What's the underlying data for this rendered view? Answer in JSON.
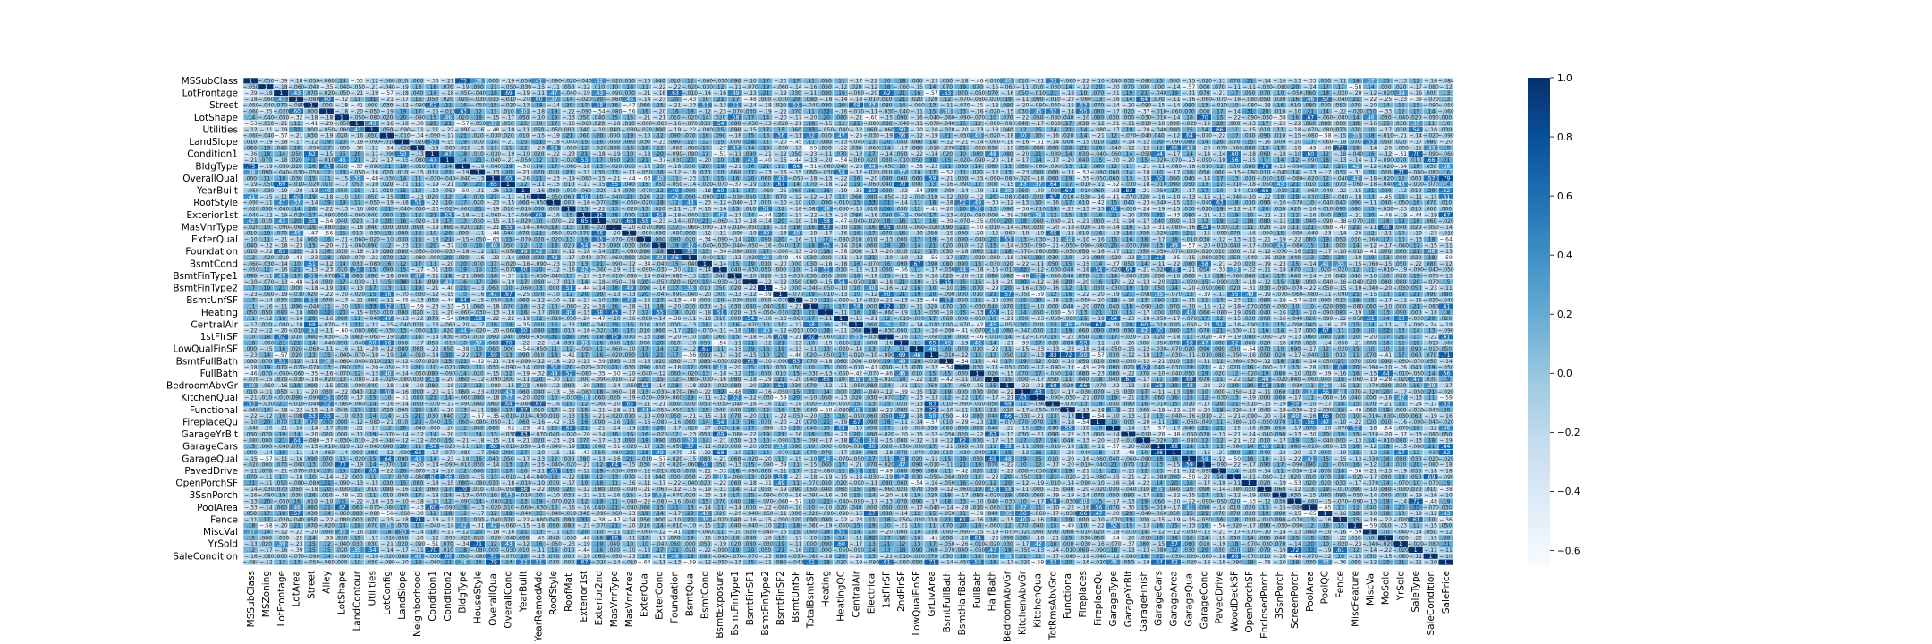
{
  "chart_data": {
    "type": "heatmap",
    "title": "",
    "xlabel": "",
    "ylabel": "",
    "variables": [
      "MSSubClass",
      "MSZoning",
      "LotFrontage",
      "LotArea",
      "Street",
      "Alley",
      "LotShape",
      "LandContour",
      "Utilities",
      "LotConfig",
      "LandSlope",
      "Neighborhood",
      "Condition1",
      "Condition2",
      "BldgType",
      "HouseStyle",
      "OverallQual",
      "OverallCond",
      "YearBuilt",
      "YearRemodAdd",
      "RoofStyle",
      "RoofMatl",
      "Exterior1st",
      "Exterior2nd",
      "MasVnrType",
      "MasVnrArea",
      "ExterQual",
      "ExterCond",
      "Foundation",
      "BsmtQual",
      "BsmtCond",
      "BsmtExposure",
      "BsmtFinType1",
      "BsmtFinSF1",
      "BsmtFinType2",
      "BsmtFinSF2",
      "BsmtUnfSF",
      "TotalBsmtSF",
      "Heating",
      "HeatingQC",
      "CentralAir",
      "Electrical",
      "1stFlrSF",
      "2ndFlrSF",
      "LowQualFinSF",
      "GrLivArea",
      "BsmtFullBath",
      "BsmtHalfBath",
      "FullBath",
      "HalfBath",
      "BedroomAbvGr",
      "KitchenAbvGr",
      "KitchenQual",
      "TotRmsAbvGrd",
      "Functional",
      "Fireplaces",
      "FireplaceQu",
      "GarageType",
      "GarageYrBlt",
      "GarageFinish",
      "GarageCars",
      "GarageArea",
      "GarageQual",
      "GarageCond",
      "PavedDrive",
      "WoodDeckSF",
      "OpenPorchSF",
      "EnclosedPorch",
      "3SsnPorch",
      "ScreenPorch",
      "PoolArea",
      "PoolQC",
      "Fence",
      "MiscFeature",
      "MiscVal",
      "MoSold",
      "YrSold",
      "SaleType",
      "SaleCondition",
      "SalePrice"
    ],
    "y_tick_labels": [
      "MSSubClass",
      "LotFrontage",
      "Street",
      "LotShape",
      "Utilities",
      "LandSlope",
      "Condition1",
      "BldgType",
      "OverallQual",
      "YearBuilt",
      "RoofStyle",
      "Exterior1st",
      "MasVnrType",
      "ExterQual",
      "Foundation",
      "BsmtCond",
      "BsmtFinType1",
      "BsmtFinType2",
      "BsmtUnfSF",
      "Heating",
      "CentralAir",
      "1stFlrSF",
      "LowQualFinSF",
      "BsmtFullBath",
      "FullBath",
      "BedroomAbvGr",
      "KitchenQual",
      "Functional",
      "FireplaceQu",
      "GarageYrBlt",
      "GarageCars",
      "GarageQual",
      "PavedDrive",
      "OpenPorchSF",
      "3SsnPorch",
      "PoolArea",
      "Fence",
      "MiscVal",
      "YrSold",
      "SaleCondition"
    ],
    "x_tick_labels": [
      "MSSubClass",
      "MSZoning",
      "LotFrontage",
      "LotArea",
      "Street",
      "Alley",
      "LotShape",
      "LandContour",
      "Utilities",
      "LotConfig",
      "LandSlope",
      "Neighborhood",
      "Condition1",
      "Condition2",
      "BldgType",
      "HouseStyle",
      "OverallQual",
      "OverallCond",
      "YearBuilt",
      "YearRemodAdd",
      "RoofStyle",
      "RoofMatl",
      "Exterior1st",
      "Exterior2nd",
      "MasVnrType",
      "MasVnrArea",
      "ExterQual",
      "ExterCond",
      "Foundation",
      "BsmtQual",
      "BsmtCond",
      "BsmtExposure",
      "BsmtFinType1",
      "BsmtFinSF1",
      "BsmtFinType2",
      "BsmtFinSF2",
      "BsmtUnfSF",
      "TotalBsmtSF",
      "Heating",
      "HeatingQC",
      "CentralAir",
      "Electrical",
      "1stFlrSF",
      "2ndFlrSF",
      "LowQualFinSF",
      "GrLivArea",
      "BsmtFullBath",
      "BsmtHalfBath",
      "FullBath",
      "HalfBath",
      "BedroomAbvGr",
      "KitchenAbvGr",
      "KitchenQual",
      "TotRmsAbvGrd",
      "Functional",
      "Fireplaces",
      "FireplaceQu",
      "GarageType",
      "GarageYrBlt",
      "GarageFinish",
      "GarageCars",
      "GarageArea",
      "GarageQual",
      "GarageCond",
      "PavedDrive",
      "WoodDeckSF",
      "OpenPorchSF",
      "EnclosedPorch",
      "3SsnPorch",
      "ScreenPorch",
      "PoolArea",
      "PoolQC",
      "Fence",
      "MiscFeature",
      "MiscVal",
      "MoSold",
      "YrSold",
      "SaleType",
      "SaleCondition",
      "SalePrice"
    ],
    "vmin": -0.65,
    "vmax": 1.0,
    "colorbar_ticks": [
      1.0,
      0.8,
      0.6,
      0.4,
      0.2,
      0.0,
      -0.2,
      -0.4,
      -0.6
    ],
    "colorbar_tick_labels": [
      "1.0",
      "0.8",
      "0.6",
      "0.4",
      "0.2",
      "0.0",
      "−0.2",
      "−0.4",
      "−0.6"
    ],
    "annotated": true,
    "colormap": "Blues",
    "cell_border_color": "#ffffff",
    "known_cells": [
      {
        "row": "MSSubClass",
        "col": "MSSubClass",
        "value": 1.0
      },
      {
        "row": "MSSubClass",
        "col": "SalePrice",
        "value": -0.084
      },
      {
        "row": "MSSubClass",
        "col": "LotFrontage",
        "value": -0.39
      },
      {
        "row": "MSSubClass",
        "col": "BldgType",
        "value": 0.75
      },
      {
        "row": "OverallQual",
        "col": "SalePrice",
        "value": 0.79
      },
      {
        "row": "GrLivArea",
        "col": "SalePrice",
        "value": 0.71
      },
      {
        "row": "GarageCars",
        "col": "SalePrice",
        "value": 0.64
      },
      {
        "row": "GarageArea",
        "col": "SalePrice",
        "value": 0.62
      },
      {
        "row": "TotalBsmtSF",
        "col": "SalePrice",
        "value": 0.61
      },
      {
        "row": "1stFlrSF",
        "col": "SalePrice",
        "value": 0.61
      },
      {
        "row": "FullBath",
        "col": "SalePrice",
        "value": 0.56
      },
      {
        "row": "TotRmsAbvGrd",
        "col": "SalePrice",
        "value": 0.53
      },
      {
        "row": "YearBuilt",
        "col": "SalePrice",
        "value": 0.52
      },
      {
        "row": "YearRemodAdd",
        "col": "SalePrice",
        "value": 0.51
      },
      {
        "row": "GarageCars",
        "col": "GarageArea",
        "value": 0.88
      },
      {
        "row": "GrLivArea",
        "col": "TotRmsAbvGrd",
        "value": 0.83
      },
      {
        "row": "TotalBsmtSF",
        "col": "1stFlrSF",
        "value": 0.82
      },
      {
        "row": "YearBuilt",
        "col": "GarageYrBlt",
        "value": 0.83
      },
      {
        "row": "2ndFlrSF",
        "col": "GrLivArea",
        "value": 0.69
      },
      {
        "row": "BsmtFinSF1",
        "col": "BsmtFullBath",
        "value": 0.65
      },
      {
        "row": "Exterior1st",
        "col": "Exterior2nd",
        "value": 0.85
      },
      {
        "row": "PoolArea",
        "col": "PoolQC",
        "value": -0.65
      },
      {
        "row": "ExterQual",
        "col": "SalePrice",
        "value": -0.64
      },
      {
        "row": "KitchenQual",
        "col": "SalePrice",
        "value": -0.59
      },
      {
        "row": "BsmtQual",
        "col": "SalePrice",
        "value": -0.59
      },
      {
        "row": "OverallQual",
        "col": "ExterQual",
        "value": -0.63
      },
      {
        "row": "BsmtFinSF2",
        "col": "BsmtFinType2",
        "value": -0.59
      },
      {
        "row": "Fireplaces",
        "col": "FireplaceQu",
        "value": -0.54
      },
      {
        "row": "GarageQual",
        "col": "GarageCond",
        "value": 0.59
      },
      {
        "row": "MiscFeature",
        "col": "MiscVal",
        "value": -0.59
      },
      {
        "row": "LotFrontage",
        "col": "LotArea",
        "value": 0.43
      },
      {
        "row": "OverallQual",
        "col": "GrLivArea",
        "value": 0.59
      },
      {
        "row": "OverallQual",
        "col": "GarageCars",
        "value": 0.6
      },
      {
        "row": "HouseStyle",
        "col": "2ndFlrSF",
        "value": 0.37
      },
      {
        "row": "BedroomAbvGr",
        "col": "TotRmsAbvGrd",
        "value": 0.68
      },
      {
        "row": "MSSubClass",
        "col": "HouseStyle",
        "value": 0.38
      },
      {
        "row": "MSZoning",
        "col": "Alley",
        "value": -0.35
      },
      {
        "row": "Street",
        "col": "Utilities",
        "value": 0.0
      },
      {
        "row": "LotShape",
        "col": "LotArea",
        "value": -0.32
      },
      {
        "row": "Foundation",
        "col": "YearBuilt",
        "value": 0.49
      }
    ]
  }
}
